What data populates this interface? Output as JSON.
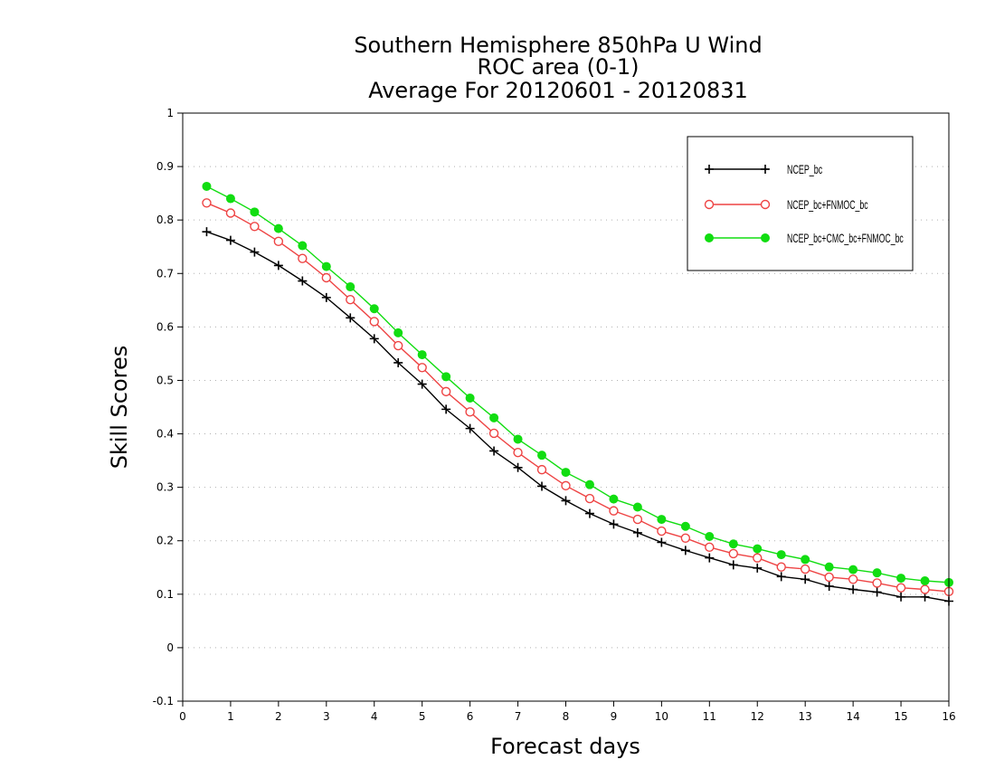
{
  "chart_data": {
    "type": "line",
    "title_lines": [
      "Southern Hemisphere 850hPa U Wind",
      "ROC area (0-1)",
      "Average For 20120601 - 20120831"
    ],
    "xlabel": "Forecast days",
    "ylabel": "Skill Scores",
    "xlim": [
      0,
      16
    ],
    "ylim": [
      -0.1,
      1
    ],
    "x_ticks": [
      0,
      1,
      2,
      3,
      4,
      5,
      6,
      7,
      8,
      9,
      10,
      11,
      12,
      13,
      14,
      15,
      16
    ],
    "x_tick_labels": [
      "0",
      "1",
      "2",
      "3",
      "4",
      "5",
      "6",
      "7",
      "8",
      "9",
      "10",
      "11",
      "12",
      "13",
      "14",
      "15",
      "16"
    ],
    "y_ticks": [
      -0.1,
      0,
      0.1,
      0.2,
      0.3,
      0.4,
      0.5,
      0.6,
      0.7,
      0.8,
      0.9,
      1
    ],
    "y_tick_labels": [
      "-0.1",
      "0",
      "0.1",
      "0.2",
      "0.3",
      "0.4",
      "0.5",
      "0.6",
      "0.7",
      "0.8",
      "0.9",
      "1"
    ],
    "grid": true,
    "legend_position": "top-right",
    "x": [
      0.5,
      1.0,
      1.5,
      2.0,
      2.5,
      3.0,
      3.5,
      4.0,
      4.5,
      5.0,
      5.5,
      6.0,
      6.5,
      7.0,
      7.5,
      8.0,
      8.5,
      9.0,
      9.5,
      10.0,
      10.5,
      11.0,
      11.5,
      12.0,
      12.5,
      13.0,
      13.5,
      14.0,
      14.5,
      15.0,
      15.5,
      16.0
    ],
    "series": [
      {
        "name": "NCEP_bc",
        "color": "#000000",
        "marker": "plus",
        "values": [
          0.778,
          0.762,
          0.74,
          0.715,
          0.686,
          0.655,
          0.617,
          0.578,
          0.533,
          0.493,
          0.446,
          0.41,
          0.368,
          0.337,
          0.302,
          0.275,
          0.251,
          0.231,
          0.215,
          0.197,
          0.182,
          0.168,
          0.155,
          0.149,
          0.133,
          0.128,
          0.115,
          0.109,
          0.104,
          0.095,
          0.095,
          0.087
        ]
      },
      {
        "name": "NCEP_bc+FNMOC_bc",
        "color": "#ee4444",
        "marker": "open-circle",
        "values": [
          0.832,
          0.813,
          0.788,
          0.76,
          0.728,
          0.692,
          0.651,
          0.61,
          0.565,
          0.524,
          0.479,
          0.441,
          0.401,
          0.365,
          0.333,
          0.303,
          0.279,
          0.256,
          0.24,
          0.218,
          0.205,
          0.188,
          0.176,
          0.168,
          0.151,
          0.147,
          0.132,
          0.128,
          0.121,
          0.112,
          0.109,
          0.105
        ]
      },
      {
        "name": "NCEP_bc+CMC_bc+FNMOC_bc",
        "color": "#11dd11",
        "marker": "filled-circle",
        "values": [
          0.863,
          0.84,
          0.815,
          0.784,
          0.752,
          0.713,
          0.675,
          0.634,
          0.589,
          0.548,
          0.507,
          0.467,
          0.43,
          0.39,
          0.36,
          0.328,
          0.305,
          0.278,
          0.263,
          0.24,
          0.227,
          0.208,
          0.194,
          0.185,
          0.174,
          0.165,
          0.151,
          0.146,
          0.14,
          0.13,
          0.125,
          0.122
        ]
      }
    ]
  }
}
